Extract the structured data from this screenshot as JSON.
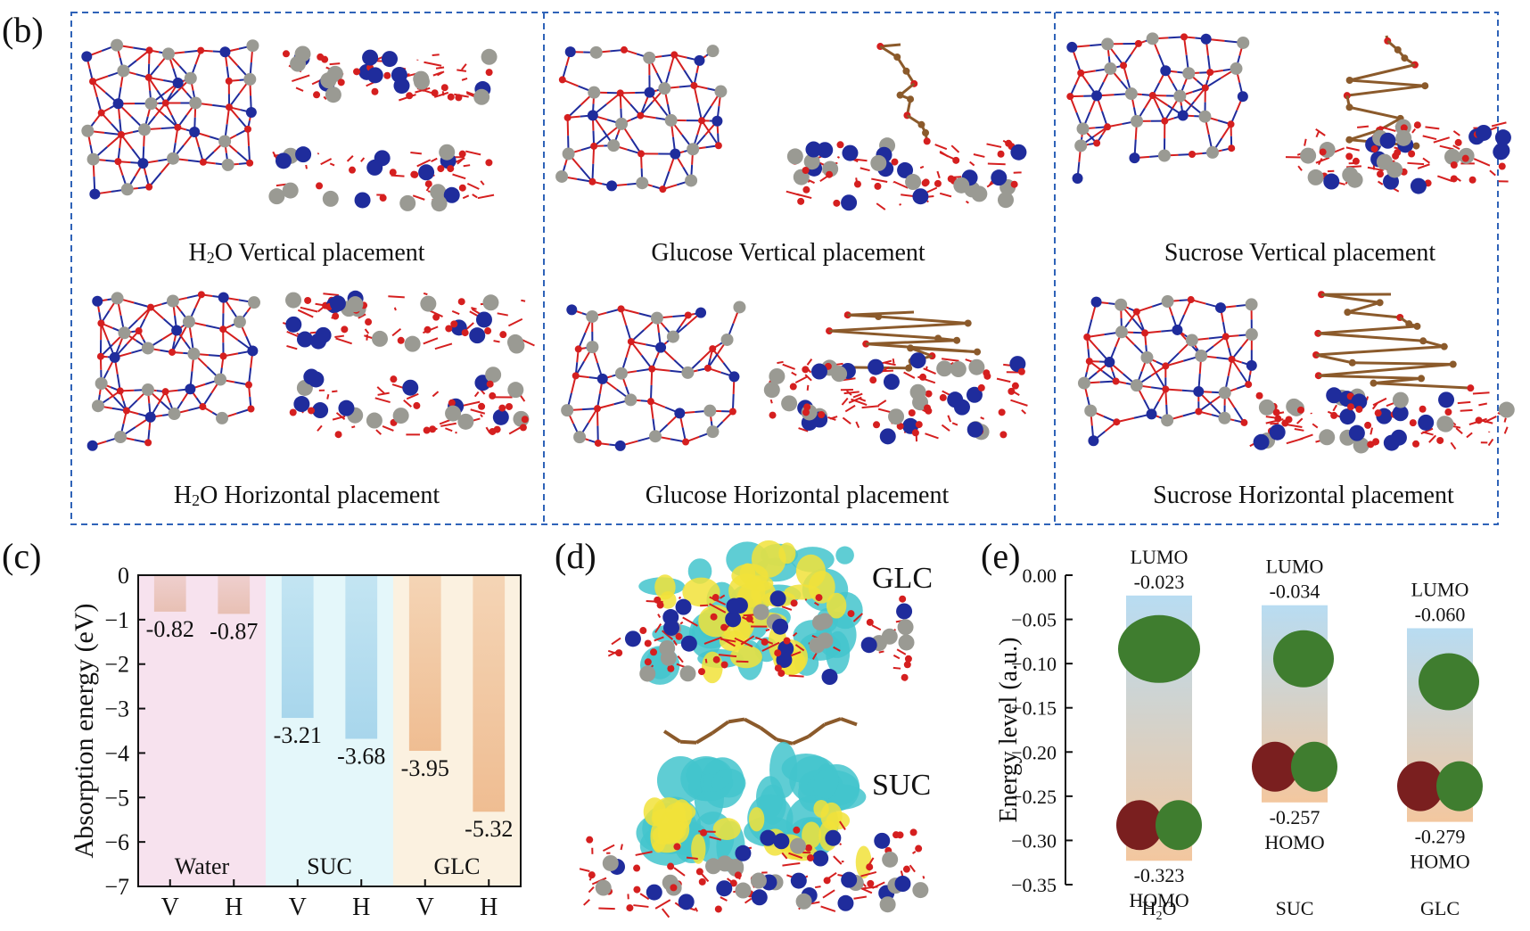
{
  "panels": {
    "b": {
      "letter": "(b)",
      "captions": [
        {
          "pre": "H",
          "sub": "2",
          "post": "O Vertical placement"
        },
        {
          "pre": "Glucose Vertical placement",
          "sub": "",
          "post": ""
        },
        {
          "pre": "Sucrose Vertical placement",
          "sub": "",
          "post": ""
        },
        {
          "pre": "H",
          "sub": "2",
          "post": "O Horizontal placement"
        },
        {
          "pre": "Glucose Horizontal placement",
          "sub": "",
          "post": ""
        },
        {
          "pre": "Sucrose Horizontal placement",
          "sub": "",
          "post": ""
        }
      ]
    },
    "c": {
      "letter": "(c)"
    },
    "d": {
      "letter": "(d)",
      "labels": {
        "top": "GLC",
        "bottom": "SUC"
      }
    },
    "e": {
      "letter": "(e)"
    }
  },
  "colors": {
    "frame": "#2f63b8",
    "oxygen": "#d51f1f",
    "carbon": "#9a9a93",
    "nitrogen": "#1f2c9c",
    "organic_c": "#8b5a2b",
    "iso_cyan": "#43c4cc",
    "iso_yellow": "#f1e23a",
    "orbital_green": "#3f7d2f",
    "orbital_red": "#7a1f1f"
  },
  "chart_data": [
    {
      "type": "bar",
      "ylabel": "Absorption energy (eV)",
      "ylim": [
        -7,
        0
      ],
      "yticks": [
        0,
        -1,
        -2,
        -3,
        -4,
        -5,
        -6,
        -7
      ],
      "categories": [
        "V",
        "H",
        "V",
        "H",
        "V",
        "H"
      ],
      "values": [
        -0.82,
        -0.87,
        -3.21,
        -3.68,
        -3.95,
        -5.32
      ],
      "value_labels": [
        "-0.82",
        "-0.87",
        "-3.21",
        "-3.68",
        "-3.95",
        "-5.32"
      ],
      "groups": [
        {
          "name": "Water",
          "members": [
            0,
            1
          ],
          "bg": "#f7e2ee",
          "bar": "#e8c0b4"
        },
        {
          "name": "SUC",
          "members": [
            2,
            3
          ],
          "bg": "#e4f7fa",
          "bar": "#a8d6ec"
        },
        {
          "name": "GLC",
          "members": [
            4,
            5
          ],
          "bg": "#fbf1e0",
          "bar": "#efbd92"
        }
      ]
    },
    {
      "type": "bar",
      "ylabel": "Energy level (a.u.)",
      "ylim": [
        -0.35,
        0.0
      ],
      "yticks": [
        "0.00",
        "-0.05",
        "-0.10",
        "-0.15",
        "-0.20",
        "-0.25",
        "-0.30",
        "-0.35"
      ],
      "categories": [
        "H2O",
        "SUC",
        "GLC"
      ],
      "lumo": [
        -0.023,
        -0.034,
        -0.06
      ],
      "homo": [
        -0.323,
        -0.257,
        -0.279
      ],
      "lumo_labels": [
        "-0.023",
        "-0.034",
        "-0.060"
      ],
      "homo_labels": [
        "-0.323",
        "-0.257",
        "-0.279"
      ],
      "lumo_text": "LUMO",
      "homo_text": "HOMO"
    }
  ]
}
